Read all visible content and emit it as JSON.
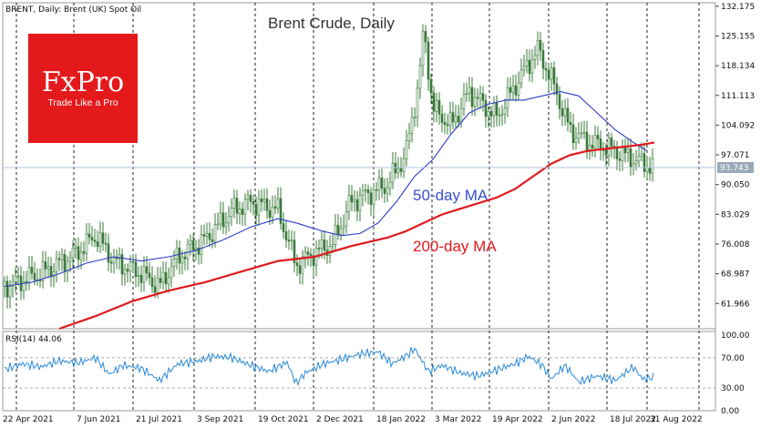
{
  "window": {
    "header": "BRENT, Daily:  Brent (UK) Spot Oil",
    "rsi_label": "RSI(14) 44.06"
  },
  "logo": {
    "name": "FxPro",
    "tagline": "Trade Like a Pro",
    "bg_color": "#e4191c"
  },
  "chart_data": {
    "type": "line",
    "title": "Brent Crude, Daily",
    "x_ticks": [
      "22 Apr 2021",
      "7 Jun 2021",
      "21 Jul 2021",
      "3 Sep 2021",
      "19 Oct 2021",
      "2 Dec 2021",
      "18 Jan 2022",
      "3 Mar 2022",
      "19 Apr 2022",
      "2 Jun 2022",
      "18 Jul 2022",
      "31 Aug 2022"
    ],
    "y_ticks": [
      "132.175",
      "125.155",
      "118.134",
      "111.113",
      "104.092",
      "97.071",
      "90.050",
      "83.029",
      "76.008",
      "68.987",
      "61.966"
    ],
    "ylim": [
      56,
      133
    ],
    "current_price": "93.743",
    "price_color": "#3a7a3a",
    "series": [
      {
        "name": "50-day MA",
        "color": "#2b3bc9",
        "values": [
          [
            0,
            66
          ],
          [
            30,
            67
          ],
          [
            60,
            69
          ],
          [
            90,
            71.5
          ],
          [
            120,
            73
          ],
          [
            150,
            72
          ],
          [
            180,
            73
          ],
          [
            210,
            74.5
          ],
          [
            240,
            77
          ],
          [
            270,
            80
          ],
          [
            300,
            82
          ],
          [
            320,
            81
          ],
          [
            350,
            79
          ],
          [
            370,
            78
          ],
          [
            390,
            78.5
          ],
          [
            410,
            81
          ],
          [
            430,
            86
          ],
          [
            450,
            92
          ],
          [
            470,
            96
          ],
          [
            490,
            102
          ],
          [
            510,
            107
          ],
          [
            530,
            109
          ],
          [
            550,
            110
          ],
          [
            570,
            110
          ],
          [
            590,
            111
          ],
          [
            610,
            112
          ],
          [
            630,
            111
          ],
          [
            650,
            107
          ],
          [
            670,
            103
          ],
          [
            690,
            100
          ],
          [
            705,
            98
          ]
        ]
      },
      {
        "name": "200-day MA",
        "color": "#e0191e",
        "values": [
          [
            60,
            56
          ],
          [
            100,
            59
          ],
          [
            140,
            62.5
          ],
          [
            180,
            65
          ],
          [
            220,
            67
          ],
          [
            260,
            69.5
          ],
          [
            300,
            72
          ],
          [
            340,
            73
          ],
          [
            380,
            75.5
          ],
          [
            420,
            77.5
          ],
          [
            440,
            79
          ],
          [
            460,
            81
          ],
          [
            480,
            83
          ],
          [
            510,
            85
          ],
          [
            540,
            87
          ],
          [
            560,
            89
          ],
          [
            580,
            92
          ],
          [
            600,
            95
          ],
          [
            620,
            97
          ],
          [
            640,
            98
          ],
          [
            660,
            98.5
          ],
          [
            680,
            99
          ],
          [
            700,
            99.5
          ],
          [
            713,
            100
          ]
        ]
      }
    ],
    "rsi": {
      "levels": [
        "100.00",
        "70.00",
        "30.00",
        "0.00"
      ],
      "value": "44.06",
      "values": [
        [
          0,
          55
        ],
        [
          20,
          62
        ],
        [
          40,
          58
        ],
        [
          60,
          66
        ],
        [
          80,
          63
        ],
        [
          100,
          70
        ],
        [
          115,
          48
        ],
        [
          130,
          60
        ],
        [
          150,
          56
        ],
        [
          170,
          40
        ],
        [
          190,
          62
        ],
        [
          210,
          65
        ],
        [
          230,
          72
        ],
        [
          250,
          70
        ],
        [
          270,
          60
        ],
        [
          290,
          52
        ],
        [
          310,
          64
        ],
        [
          320,
          36
        ],
        [
          330,
          50
        ],
        [
          350,
          62
        ],
        [
          370,
          68
        ],
        [
          390,
          75
        ],
        [
          410,
          78
        ],
        [
          425,
          62
        ],
        [
          440,
          72
        ],
        [
          450,
          82
        ],
        [
          465,
          52
        ],
        [
          480,
          60
        ],
        [
          500,
          50
        ],
        [
          520,
          46
        ],
        [
          540,
          54
        ],
        [
          560,
          62
        ],
        [
          575,
          72
        ],
        [
          590,
          60
        ],
        [
          600,
          42
        ],
        [
          615,
          60
        ],
        [
          630,
          38
        ],
        [
          650,
          46
        ],
        [
          670,
          40
        ],
        [
          690,
          58
        ],
        [
          700,
          42
        ],
        [
          713,
          44
        ]
      ]
    }
  }
}
